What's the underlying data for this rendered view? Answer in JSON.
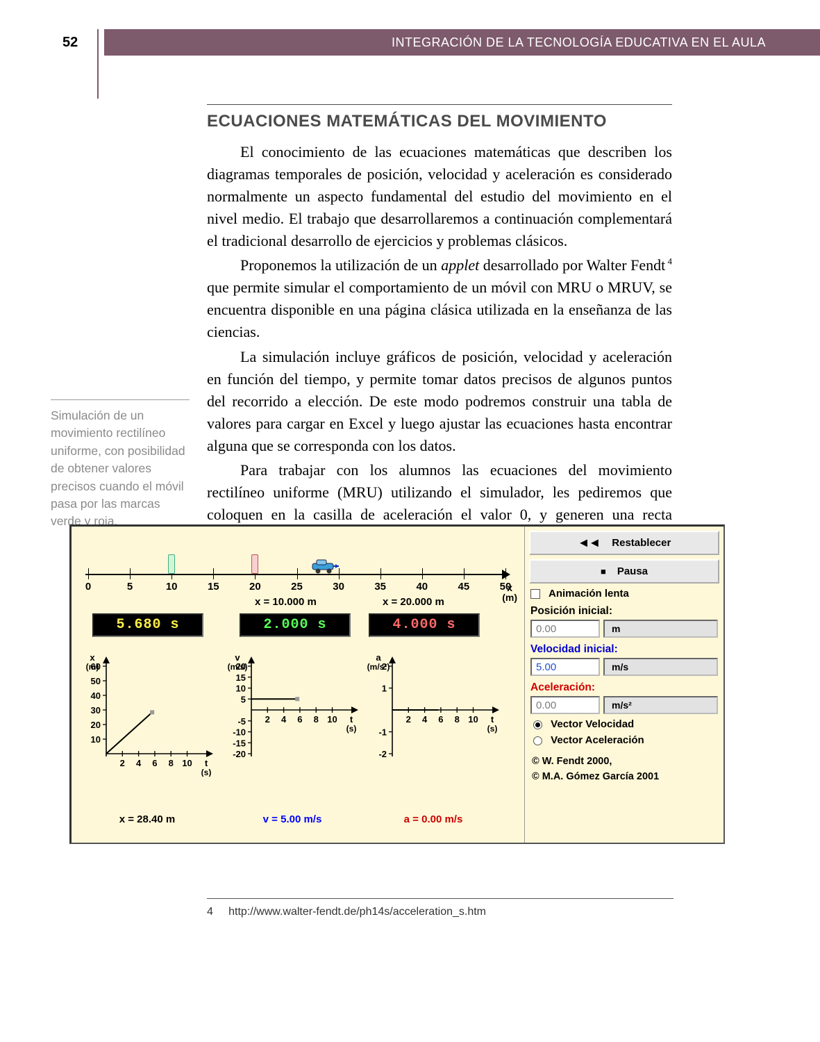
{
  "page_number": "52",
  "running_head": "INTEGRACIÓN DE LA TECNOLOGÍA EDUCATIVA EN EL AULA",
  "section_title": "ECUACIONES MATEMÁTICAS DEL MOVIMIENTO",
  "paragraphs": [
    "El conocimiento de las ecuaciones matemáticas que describen los diagramas temporales de posición, velocidad y aceleración es considerado normalmente un aspecto fundamental del estudio del movimiento en el nivel medio. El trabajo que desarrollaremos a continuación complementará el tradicional desarrollo de ejercicios y problemas clásicos.",
    "Proponemos la utilización de un <em>applet</em> desarrollado por Walter Fendt<sup>&nbsp;4</sup> que permite simular el comportamiento de un móvil con MRU o MRUV, se encuentra disponible en una página clásica utilizada en la enseñanza de las ciencias.",
    "La simulación incluye gráficos de posición, velocidad y aceleración en función del tiempo, y permite tomar datos precisos de algunos puntos del recorrido a elección. De este modo podremos construir una tabla de valores para cargar en Excel y luego ajustar las ecuaciones hasta encontrar alguna que se corresponda con los datos.",
    "Para trabajar con los alumnos las ecuaciones del movimiento rectilíneo uniforme (MRU) utilizando el simulador, les pediremos que coloquen en la casilla de aceleración el valor 0, y generen una recta horizontal para la velocidad y una recta con pendiente distinta de cero para la posición."
  ],
  "sidebar_note": "Simulación de un movimiento rectilíneo uniforme, con posibilidad de obtener valores precisos cuando el móvil pasa por las marcas verde y roja.",
  "footnote": {
    "marker": "4",
    "text": "http://www.walter-fendt.de/ph14s/acceleration_s.htm"
  },
  "sim": {
    "background_color": "#fff8d8",
    "ruler": {
      "ticks": [
        0,
        5,
        10,
        15,
        20,
        25,
        30,
        35,
        40,
        45,
        50
      ],
      "axis_label_top": "x",
      "axis_label_bottom": "(m)",
      "green_marker_x": 10,
      "red_marker_x": 20,
      "car_x": 28.4,
      "x_green_label": "x = 10.000 m",
      "x_red_label": "x = 20.000 m"
    },
    "timers": {
      "main": "5.680 s",
      "green": "2.000 s",
      "red": "4.000 s"
    },
    "charts": {
      "height": 184,
      "position": {
        "y_label_top": "x",
        "y_label_bottom": "(m)",
        "x_label_top": "t",
        "x_label_bottom": "(s)",
        "y_ticks": [
          10,
          20,
          30,
          40,
          50,
          60
        ],
        "x_ticks": [
          2,
          4,
          6,
          8,
          10
        ],
        "data": {
          "type": "line",
          "points": [
            [
              0,
              0
            ],
            [
              5.68,
              28.4
            ]
          ]
        },
        "point_marker_color": "#999999",
        "value_label": "x = 28.40 m",
        "value_color": "#000000"
      },
      "velocity": {
        "y_label_top": "v",
        "y_label_bottom": "(m/s)",
        "x_label_top": "t",
        "x_label_bottom": "(s)",
        "y_ticks": [
          -20,
          -15,
          -10,
          -5,
          5,
          10,
          15,
          20
        ],
        "x_ticks": [
          2,
          4,
          6,
          8,
          10
        ],
        "data": {
          "type": "hline",
          "y": 5,
          "x_from": 0,
          "x_to": 5.68
        },
        "point_marker_color": "#999999",
        "value_label": "v = 5.00 m/s",
        "value_color": "#0000ff"
      },
      "acceleration": {
        "y_label_top": "a",
        "y_label_bottom": "(m/s²)",
        "x_label_top": "t",
        "x_label_bottom": "(s)",
        "y_ticks": [
          -2,
          -1,
          1,
          2
        ],
        "x_ticks": [
          2,
          4,
          6,
          8,
          10
        ],
        "data": {
          "type": "hline",
          "y": 0,
          "x_from": 0,
          "x_to": 5.68
        },
        "value_label": "a = 0.00 m/s",
        "value_color": "#cc0000"
      }
    },
    "panel": {
      "reset_symbol": "◄◄",
      "reset_label": "Restablecer",
      "pause_symbol": "■",
      "pause_label": "Pausa",
      "slow_anim_label": "Animación lenta",
      "pos_label": "Posición inicial:",
      "pos_value": "0.00",
      "pos_unit": "m",
      "vel_label": "Velocidad inicial:",
      "vel_value": "5.00",
      "vel_unit": "m/s",
      "acc_label": "Aceleración:",
      "acc_value": "0.00",
      "acc_unit": "m/s²",
      "radio_vel": "Vector Velocidad",
      "radio_acc": "Vector Aceleración",
      "credit1": "©  W. Fendt 2000,",
      "credit2": "©  M.A. Gómez García 2001"
    }
  }
}
